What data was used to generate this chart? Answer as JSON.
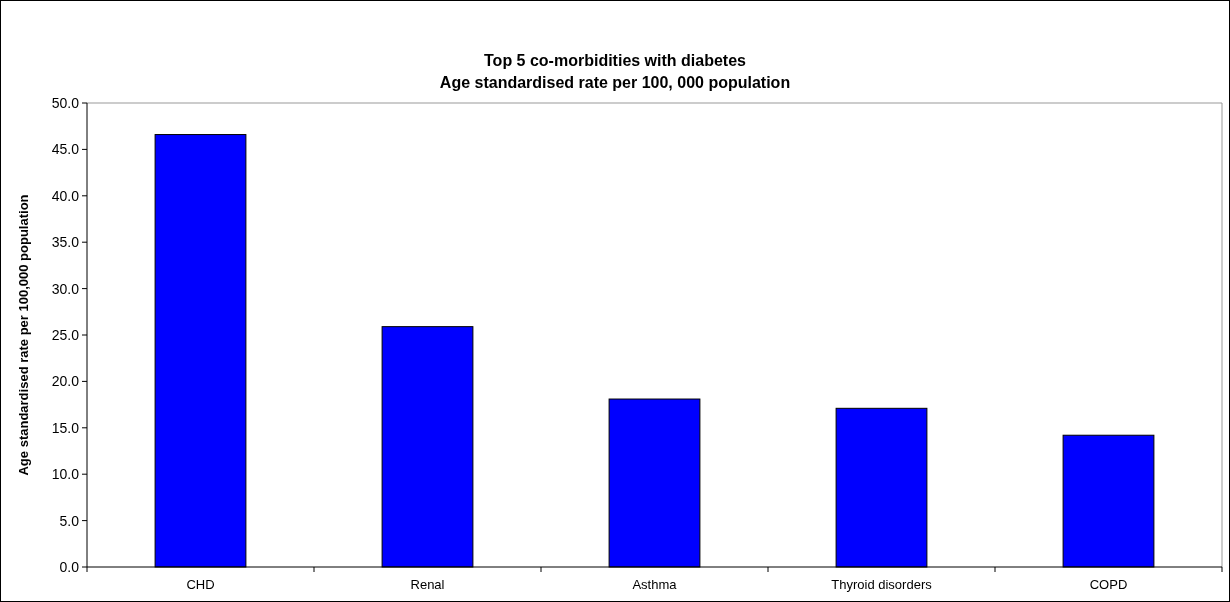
{
  "chart_data": {
    "type": "bar",
    "title": "Top 5 co-morbidities with diabetes",
    "subtitle": "Age standardised rate per 100, 000 population",
    "ylabel": "Age standardised rate per 100,000 population",
    "categories": [
      "CHD",
      "Renal",
      "Asthma",
      "Thyroid disorders",
      "COPD"
    ],
    "values": [
      46.6,
      25.9,
      18.1,
      17.1,
      14.2
    ],
    "color": "#0000ff",
    "ylim": [
      0,
      50
    ],
    "yticks": [
      {
        "value": 0,
        "label": "0.0"
      },
      {
        "value": 5,
        "label": "5.0"
      },
      {
        "value": 10,
        "label": "10.0"
      },
      {
        "value": 15,
        "label": "15.0"
      },
      {
        "value": 20,
        "label": "20.0"
      },
      {
        "value": 25,
        "label": "25.0"
      },
      {
        "value": 30,
        "label": "30.0"
      },
      {
        "value": 35,
        "label": "35.0"
      },
      {
        "value": 40,
        "label": "40.0"
      },
      {
        "value": 45,
        "label": "45.0"
      },
      {
        "value": 50,
        "label": "50.0"
      }
    ],
    "grid": false
  }
}
